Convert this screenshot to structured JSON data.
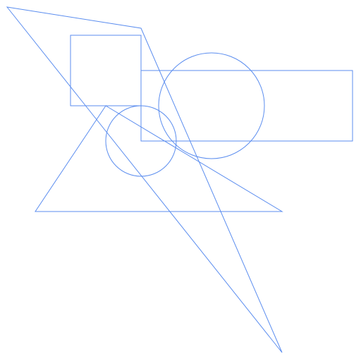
{
  "diagram": {
    "stroke_color": "#5b8def",
    "fill": "none",
    "shapes": [
      {
        "name": "square-outline",
        "kind": "rect"
      },
      {
        "name": "wide-rectangle-outline",
        "kind": "rect"
      },
      {
        "name": "large-circle-outline",
        "kind": "circle"
      },
      {
        "name": "small-circle-outline",
        "kind": "circle"
      },
      {
        "name": "triangle-outline",
        "kind": "polygon"
      },
      {
        "name": "long-quadrilateral-outline",
        "kind": "polygon"
      }
    ]
  }
}
